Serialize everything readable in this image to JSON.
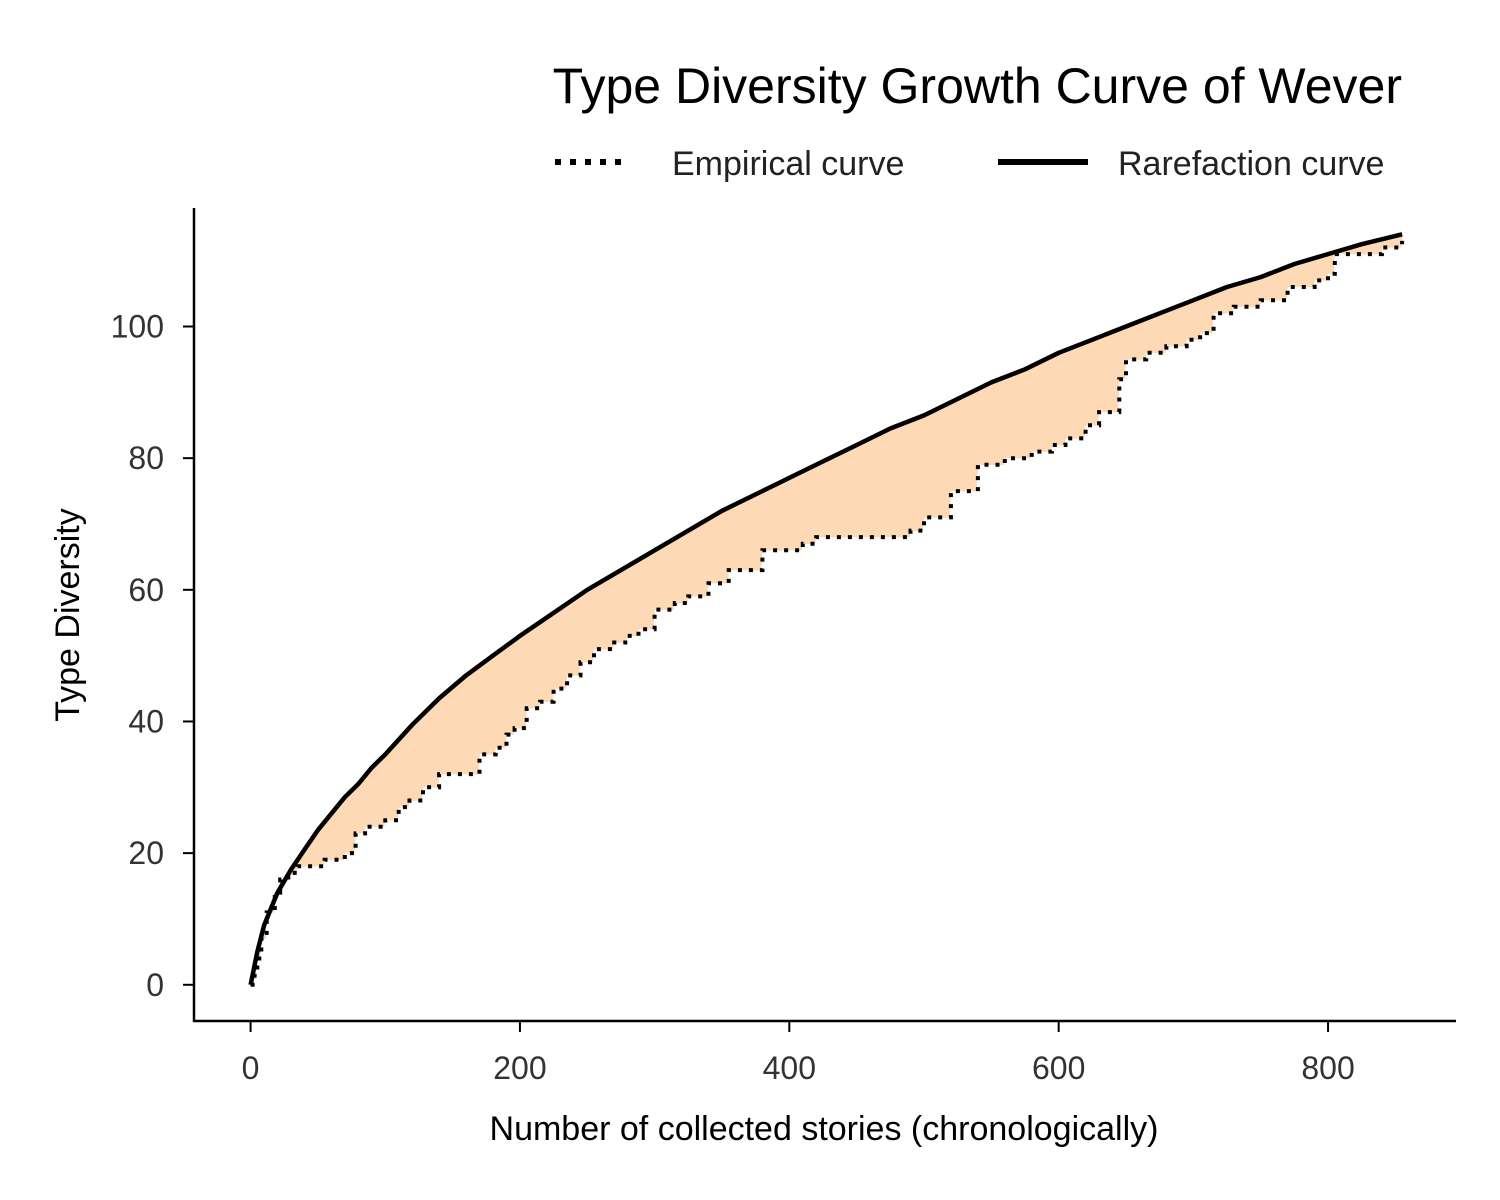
{
  "chart_data": {
    "type": "line",
    "title": "Type Diversity Growth Curve of Wever",
    "xlabel": "Number of collected stories (chronologically)",
    "ylabel": "Type Diversity",
    "xlim": [
      -42,
      895
    ],
    "ylim": [
      -5.5,
      118
    ],
    "xticks": [
      0,
      200,
      400,
      600,
      800
    ],
    "yticks": [
      0,
      20,
      40,
      60,
      80,
      100
    ],
    "grid": false,
    "legend_position": "top-right",
    "fill_color_below": "#fdd9b5",
    "fill_color_above": "#b9d2ea",
    "series": [
      {
        "name": "Empirical curve",
        "style": "dotted",
        "color": "#000000",
        "x": [
          0,
          3,
          5,
          8,
          12,
          18,
          22,
          28,
          35,
          45,
          55,
          70,
          78,
          85,
          100,
          110,
          118,
          128,
          140,
          160,
          170,
          182,
          190,
          196,
          205,
          215,
          225,
          235,
          245,
          255,
          270,
          280,
          288,
          300,
          315,
          325,
          340,
          355,
          370,
          380,
          400,
          410,
          420,
          440,
          460,
          480,
          490,
          500,
          520,
          540,
          560,
          580,
          595,
          605,
          620,
          630,
          640,
          645,
          650,
          665,
          680,
          695,
          705,
          715,
          730,
          750,
          770,
          790,
          800,
          805,
          820,
          840,
          855
        ],
        "y": [
          0,
          2,
          4,
          7,
          11,
          14,
          16,
          17,
          18,
          18,
          19,
          20,
          23,
          24,
          25,
          27,
          28,
          30,
          32,
          32,
          35,
          36,
          38,
          39,
          42,
          43,
          45,
          47,
          49,
          51,
          52,
          53,
          54,
          57,
          58,
          59,
          61,
          63,
          63,
          66,
          66,
          67,
          68,
          68,
          68,
          68,
          69,
          71,
          75,
          79,
          80,
          81,
          82,
          83,
          85,
          87,
          87,
          92,
          95,
          96,
          97,
          98,
          99,
          102,
          103,
          104,
          106,
          107,
          108,
          111,
          111,
          112,
          113
        ]
      },
      {
        "name": "Rarefaction curve",
        "style": "solid",
        "color": "#000000",
        "x": [
          0,
          5,
          10,
          20,
          30,
          40,
          50,
          60,
          70,
          80,
          90,
          100,
          120,
          140,
          160,
          180,
          200,
          225,
          250,
          275,
          300,
          325,
          350,
          375,
          400,
          425,
          450,
          475,
          500,
          525,
          550,
          575,
          600,
          625,
          650,
          675,
          700,
          725,
          750,
          775,
          800,
          825,
          855
        ],
        "y": [
          0,
          5,
          9,
          14,
          17.5,
          20.5,
          23.5,
          26,
          28.5,
          30.5,
          33,
          35,
          39.5,
          43.5,
          47,
          50,
          53,
          56.5,
          60,
          63,
          66,
          69,
          72,
          74.5,
          77,
          79.5,
          82,
          84.5,
          86.5,
          89,
          91.5,
          93.5,
          96,
          98,
          100,
          102,
          104,
          106,
          107.5,
          109.5,
          111,
          112.5,
          114
        ]
      }
    ]
  }
}
